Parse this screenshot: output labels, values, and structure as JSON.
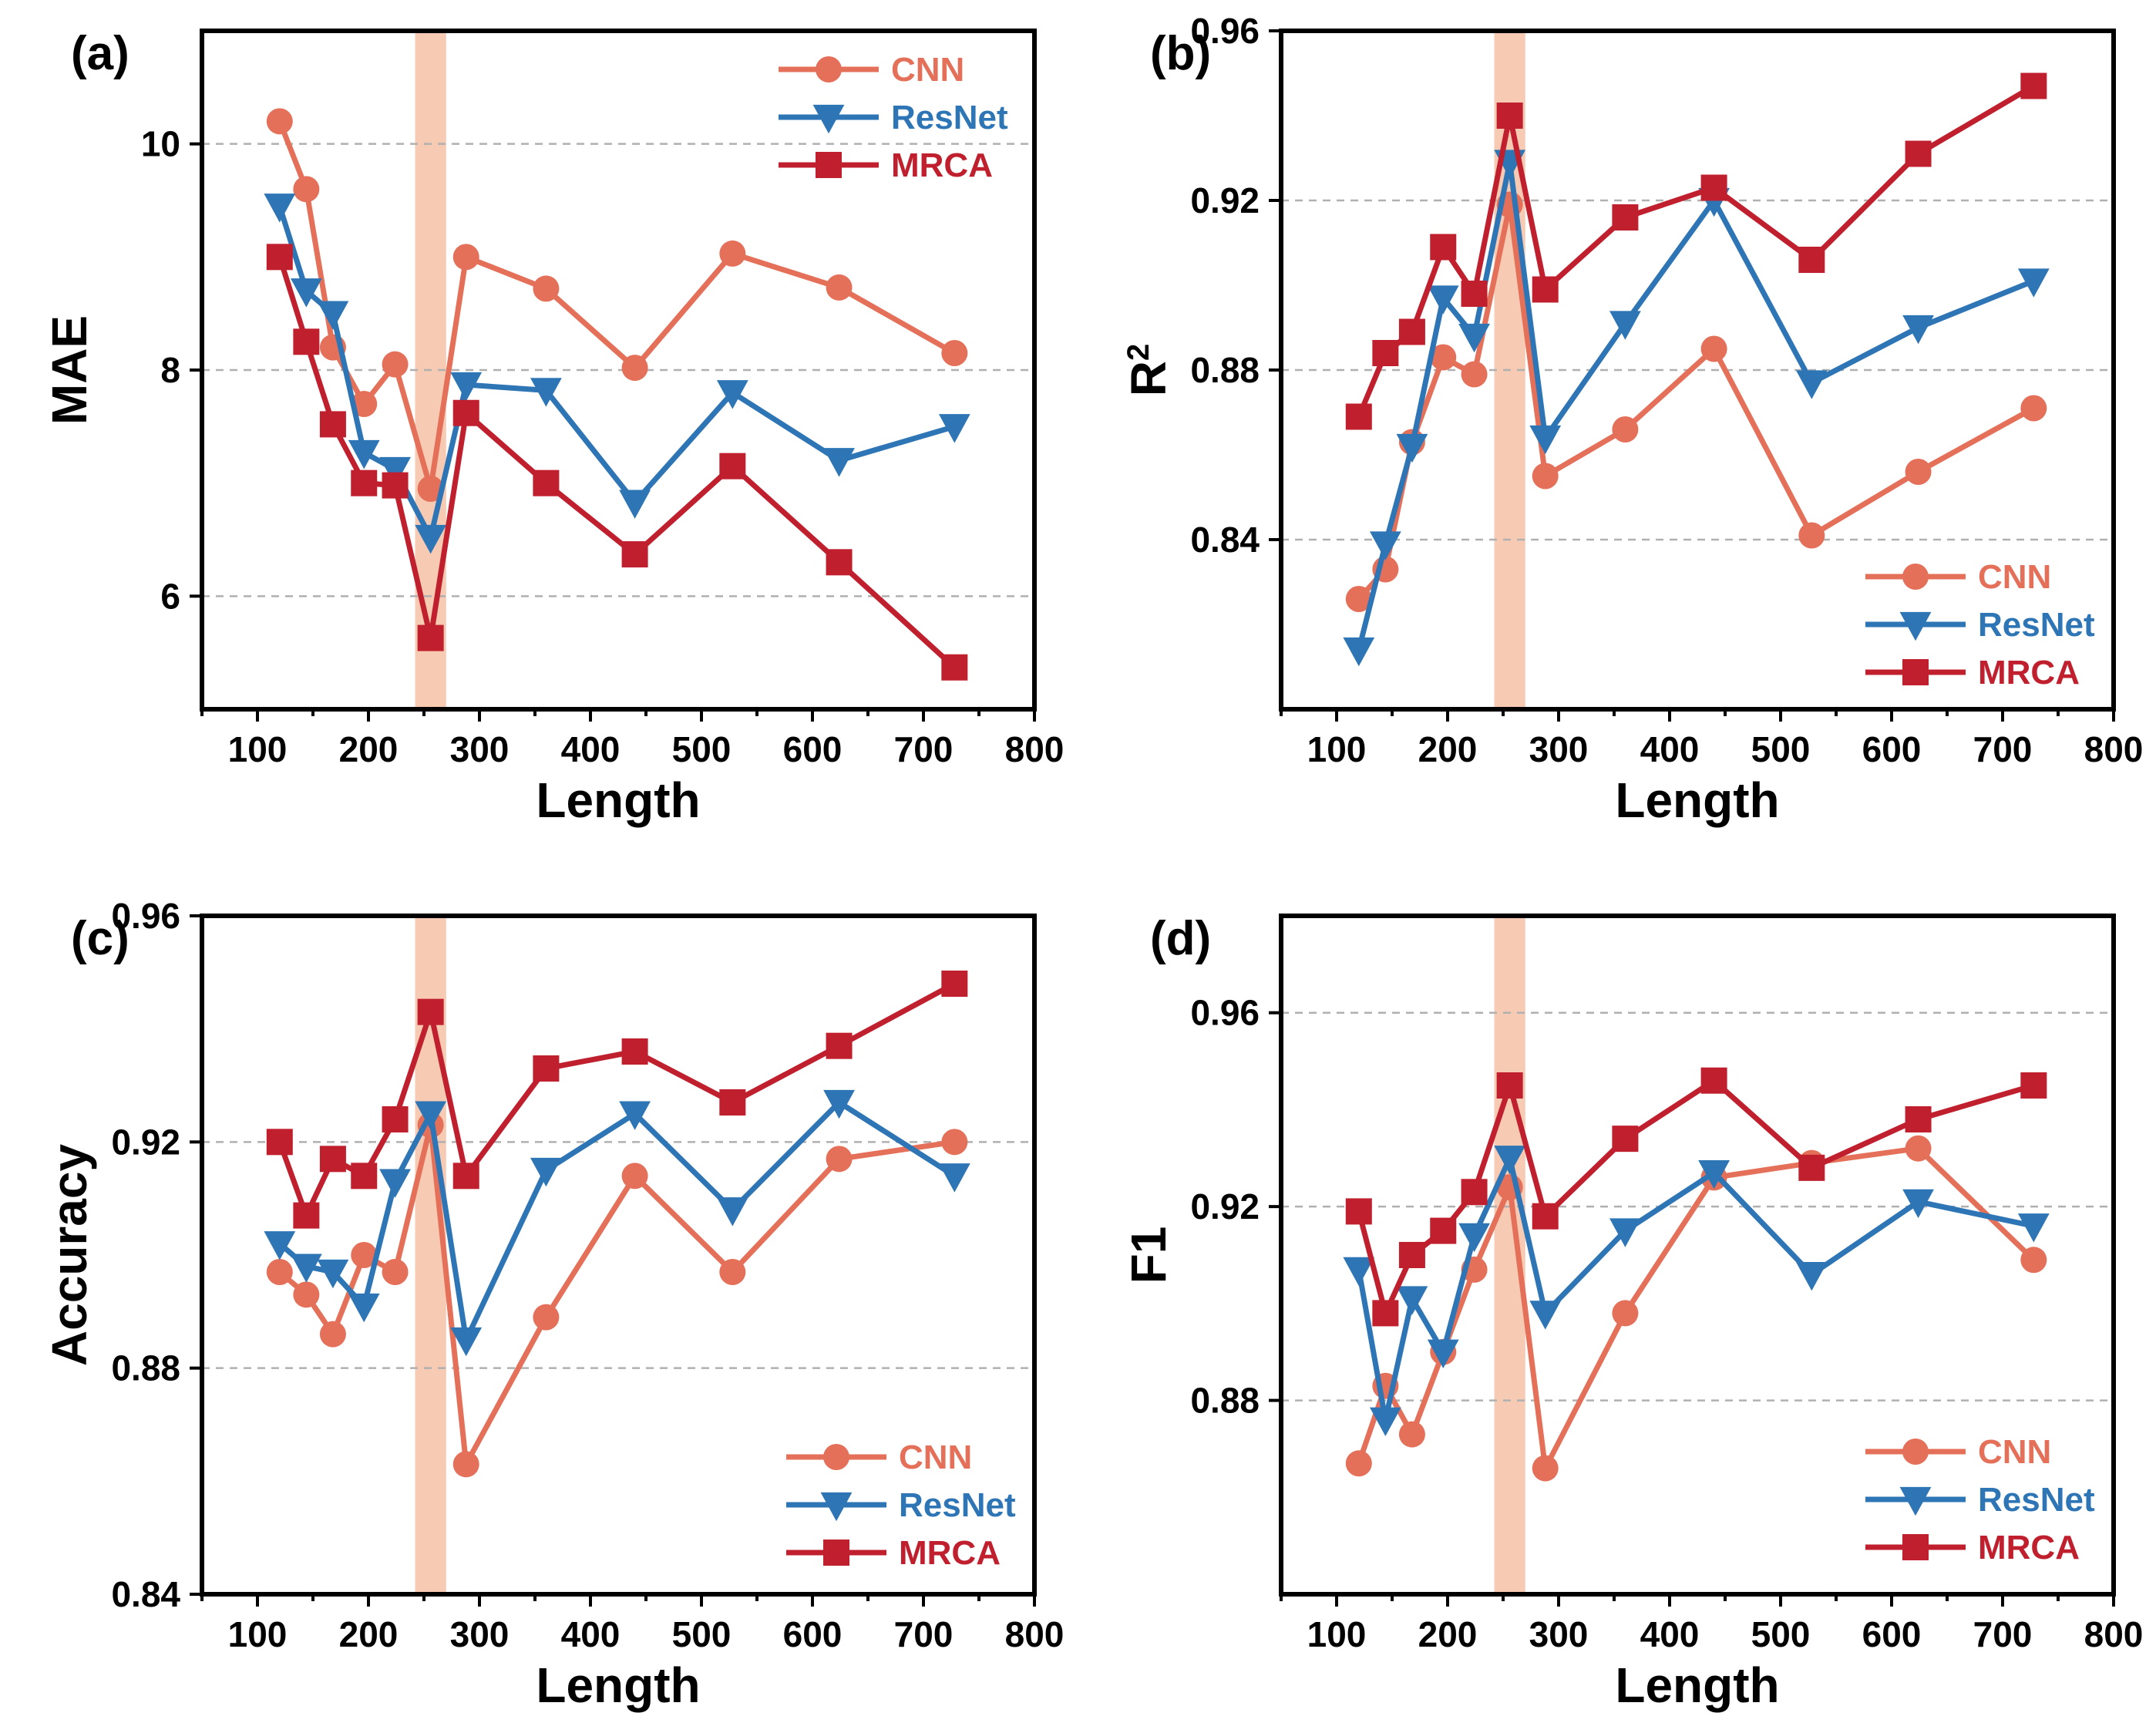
{
  "colors": {
    "CNN": "#E5705A",
    "ResNet": "#2E75B6",
    "MRCA": "#C0202E",
    "highlight": "#F7CBB3"
  },
  "chart_data": [
    {
      "panel": "(a)",
      "type": "line",
      "xlabel": "Length",
      "ylabel": "MAE",
      "xlim": [
        50,
        800
      ],
      "ylim": [
        5,
        11
      ],
      "xticks": [
        100,
        200,
        300,
        400,
        500,
        600,
        700,
        800
      ],
      "yticks": [
        6,
        8,
        10
      ],
      "ytick_labels": [
        "6",
        "8",
        "10"
      ],
      "grid_y": [
        6,
        8,
        10
      ],
      "highlight_band": [
        242,
        270
      ],
      "legend": "top-right",
      "x": [
        120,
        144,
        168,
        196,
        224,
        256,
        288,
        360,
        440,
        528,
        624,
        728
      ],
      "series": [
        {
          "name": "CNN",
          "marker": "circle",
          "values": [
            10.2,
            9.6,
            8.2,
            7.7,
            8.05,
            6.95,
            9.0,
            8.72,
            8.02,
            9.03,
            8.73,
            8.15
          ]
        },
        {
          "name": "ResNet",
          "marker": "triangle-down",
          "values": [
            9.45,
            8.7,
            8.5,
            7.27,
            7.12,
            6.52,
            7.87,
            7.82,
            6.83,
            7.8,
            7.2,
            7.5
          ]
        },
        {
          "name": "MRCA",
          "marker": "square",
          "values": [
            9.0,
            8.25,
            7.52,
            7.0,
            6.98,
            5.63,
            7.62,
            7.0,
            6.37,
            7.15,
            6.3,
            5.37
          ]
        }
      ]
    },
    {
      "panel": "(b)",
      "type": "line",
      "xlabel": "Length",
      "ylabel": "R",
      "ylabel_sup": "2",
      "xlim": [
        50,
        800
      ],
      "ylim": [
        0.8,
        0.96
      ],
      "xticks": [
        100,
        200,
        300,
        400,
        500,
        600,
        700,
        800
      ],
      "yticks": [
        0.84,
        0.88,
        0.92,
        0.96
      ],
      "ytick_labels": [
        "0.84",
        "0.88",
        "0.92",
        "0.96"
      ],
      "grid_y": [
        0.84,
        0.88,
        0.92
      ],
      "highlight_band": [
        242,
        270
      ],
      "legend": "bottom-right",
      "x": [
        120,
        144,
        168,
        196,
        224,
        256,
        288,
        360,
        440,
        528,
        624,
        728
      ],
      "series": [
        {
          "name": "CNN",
          "marker": "circle",
          "values": [
            0.826,
            0.833,
            0.863,
            0.883,
            0.879,
            0.919,
            0.855,
            0.866,
            0.885,
            0.841,
            0.856,
            0.871
          ]
        },
        {
          "name": "ResNet",
          "marker": "triangle-down",
          "values": [
            0.814,
            0.839,
            0.862,
            0.897,
            0.888,
            0.929,
            0.864,
            0.891,
            0.92,
            0.877,
            0.89,
            0.901
          ]
        },
        {
          "name": "MRCA",
          "marker": "square",
          "values": [
            0.869,
            0.884,
            0.889,
            0.909,
            0.898,
            0.94,
            0.899,
            0.916,
            0.923,
            0.906,
            0.931,
            0.947
          ]
        }
      ]
    },
    {
      "panel": "(c)",
      "type": "line",
      "xlabel": "Length",
      "ylabel": "Accuracy",
      "xlim": [
        50,
        800
      ],
      "ylim": [
        0.84,
        0.96
      ],
      "xticks": [
        100,
        200,
        300,
        400,
        500,
        600,
        700,
        800
      ],
      "yticks": [
        0.84,
        0.88,
        0.92,
        0.96
      ],
      "ytick_labels": [
        "0.84",
        "0.88",
        "0.92",
        "0.96"
      ],
      "grid_y": [
        0.88,
        0.92
      ],
      "highlight_band": [
        242,
        270
      ],
      "legend": "bottom-right",
      "x": [
        120,
        144,
        168,
        196,
        224,
        256,
        288,
        360,
        440,
        528,
        624,
        728
      ],
      "series": [
        {
          "name": "CNN",
          "marker": "circle",
          "values": [
            0.897,
            0.893,
            0.886,
            0.9,
            0.897,
            0.923,
            0.863,
            0.889,
            0.914,
            0.897,
            0.917,
            0.92
          ]
        },
        {
          "name": "ResNet",
          "marker": "triangle-down",
          "values": [
            0.902,
            0.898,
            0.897,
            0.891,
            0.913,
            0.925,
            0.885,
            0.915,
            0.925,
            0.908,
            0.927,
            0.914
          ]
        },
        {
          "name": "MRCA",
          "marker": "square",
          "values": [
            0.92,
            0.907,
            0.917,
            0.914,
            0.924,
            0.943,
            0.914,
            0.933,
            0.936,
            0.927,
            0.937,
            0.948
          ]
        }
      ]
    },
    {
      "panel": "(d)",
      "type": "line",
      "xlabel": "Length",
      "ylabel": "F1",
      "xlim": [
        50,
        800
      ],
      "ylim": [
        0.84,
        0.98
      ],
      "xticks": [
        100,
        200,
        300,
        400,
        500,
        600,
        700,
        800
      ],
      "yticks": [
        0.88,
        0.92,
        0.96
      ],
      "ytick_labels": [
        "0.88",
        "0.92",
        "0.96"
      ],
      "grid_y": [
        0.88,
        0.92,
        0.96
      ],
      "highlight_band": [
        242,
        270
      ],
      "legend": "bottom-right",
      "x": [
        120,
        144,
        168,
        196,
        224,
        256,
        288,
        360,
        440,
        528,
        624,
        728
      ],
      "series": [
        {
          "name": "CNN",
          "marker": "circle",
          "values": [
            0.867,
            0.883,
            0.873,
            0.89,
            0.907,
            0.924,
            0.866,
            0.898,
            0.926,
            0.929,
            0.932,
            0.909
          ]
        },
        {
          "name": "ResNet",
          "marker": "triangle-down",
          "values": [
            0.907,
            0.876,
            0.901,
            0.89,
            0.914,
            0.93,
            0.898,
            0.915,
            0.927,
            0.906,
            0.921,
            0.916
          ]
        },
        {
          "name": "MRCA",
          "marker": "square",
          "values": [
            0.919,
            0.898,
            0.91,
            0.915,
            0.923,
            0.945,
            0.918,
            0.934,
            0.946,
            0.928,
            0.938,
            0.945
          ]
        }
      ]
    }
  ]
}
